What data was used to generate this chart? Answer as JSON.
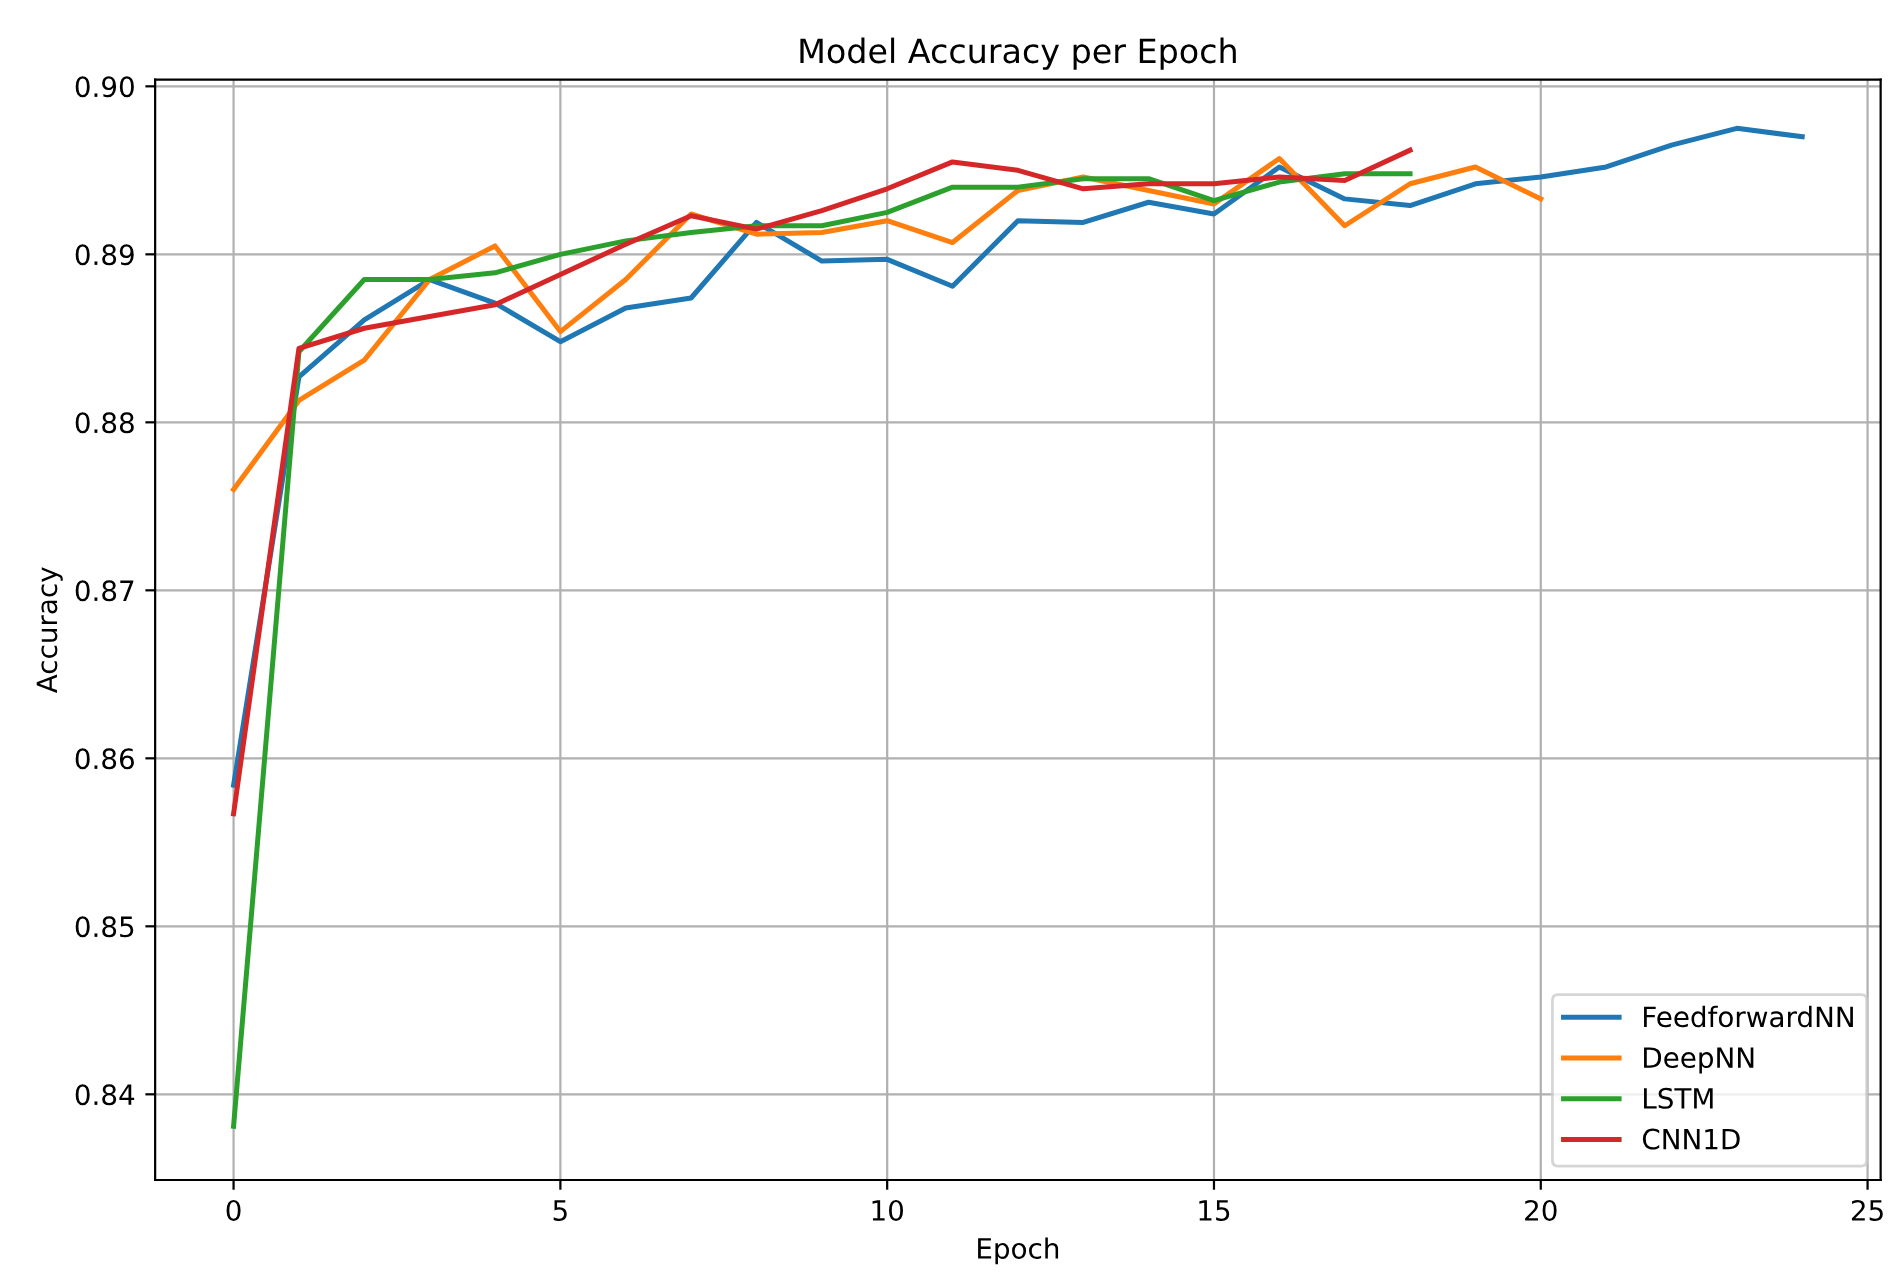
{
  "chart_data": {
    "type": "line",
    "title": "Model Accuracy per Epoch",
    "xlabel": "Epoch",
    "ylabel": "Accuracy",
    "xlim": [
      -1.2,
      25.2
    ],
    "xticks": [
      0,
      5,
      10,
      15,
      20,
      25
    ],
    "ylim": [
      0.8349,
      0.9004
    ],
    "yticks": [
      {
        "value": 0.84,
        "label": "0.84"
      },
      {
        "value": 0.85,
        "label": "0.85"
      },
      {
        "value": 0.86,
        "label": "0.86"
      },
      {
        "value": 0.87,
        "label": "0.87"
      },
      {
        "value": 0.88,
        "label": "0.88"
      },
      {
        "value": 0.89,
        "label": "0.89"
      },
      {
        "value": 0.9,
        "label": "0.90"
      }
    ],
    "grid": true,
    "legend": "bottom right",
    "marker": "none",
    "line_style": "solid",
    "series": [
      {
        "name": "FeedforwardNN",
        "color": "#1f77b4",
        "x": [
          0,
          1,
          2,
          3,
          4,
          5,
          6,
          7,
          8,
          9,
          10,
          11,
          12,
          13,
          14,
          15,
          16,
          17,
          18,
          19,
          20,
          21,
          22,
          23,
          24
        ],
        "values": [
          0.8584,
          0.8827,
          0.8861,
          0.8885,
          0.8871,
          0.8848,
          0.8868,
          0.8874,
          0.8919,
          0.8896,
          0.8897,
          0.8881,
          0.892,
          0.8919,
          0.8931,
          0.8924,
          0.8952,
          0.8933,
          0.8929,
          0.8942,
          0.8946,
          0.8952,
          0.8965,
          0.8975,
          0.897
        ]
      },
      {
        "name": "DeepNN",
        "color": "#ff7f0e",
        "x": [
          0,
          1,
          2,
          3,
          4,
          5,
          6,
          7,
          8,
          9,
          10,
          11,
          12,
          13,
          14,
          15,
          16,
          17,
          18,
          19,
          20
        ],
        "values": [
          0.876,
          0.8813,
          0.8837,
          0.8885,
          0.8905,
          0.8854,
          0.8885,
          0.8924,
          0.8912,
          0.8913,
          0.892,
          0.8907,
          0.8938,
          0.8946,
          0.8938,
          0.893,
          0.8957,
          0.8917,
          0.8942,
          0.8952,
          0.8933
        ]
      },
      {
        "name": "LSTM",
        "color": "#2ca02c",
        "x": [
          0,
          1,
          2,
          3,
          4,
          5,
          6,
          7,
          8,
          9,
          10,
          11,
          12,
          13,
          14,
          15,
          16,
          17,
          18
        ],
        "values": [
          0.8381,
          0.8842,
          0.8885,
          0.8885,
          0.8889,
          0.89,
          0.8908,
          0.8913,
          0.8917,
          0.8917,
          0.8925,
          0.894,
          0.894,
          0.8945,
          0.8945,
          0.8932,
          0.8943,
          0.8948,
          0.8948
        ]
      },
      {
        "name": "CNN1D",
        "color": "#d62728",
        "x": [
          0,
          1,
          2,
          3,
          4,
          5,
          6,
          7,
          8,
          9,
          10,
          11,
          12,
          13,
          14,
          15,
          16,
          17,
          18
        ],
        "values": [
          0.8567,
          0.8844,
          0.8856,
          0.8863,
          0.887,
          0.8888,
          0.8906,
          0.8923,
          0.8915,
          0.8926,
          0.8939,
          0.8955,
          0.895,
          0.8939,
          0.8942,
          0.8942,
          0.8946,
          0.8944,
          0.8962
        ]
      }
    ]
  }
}
